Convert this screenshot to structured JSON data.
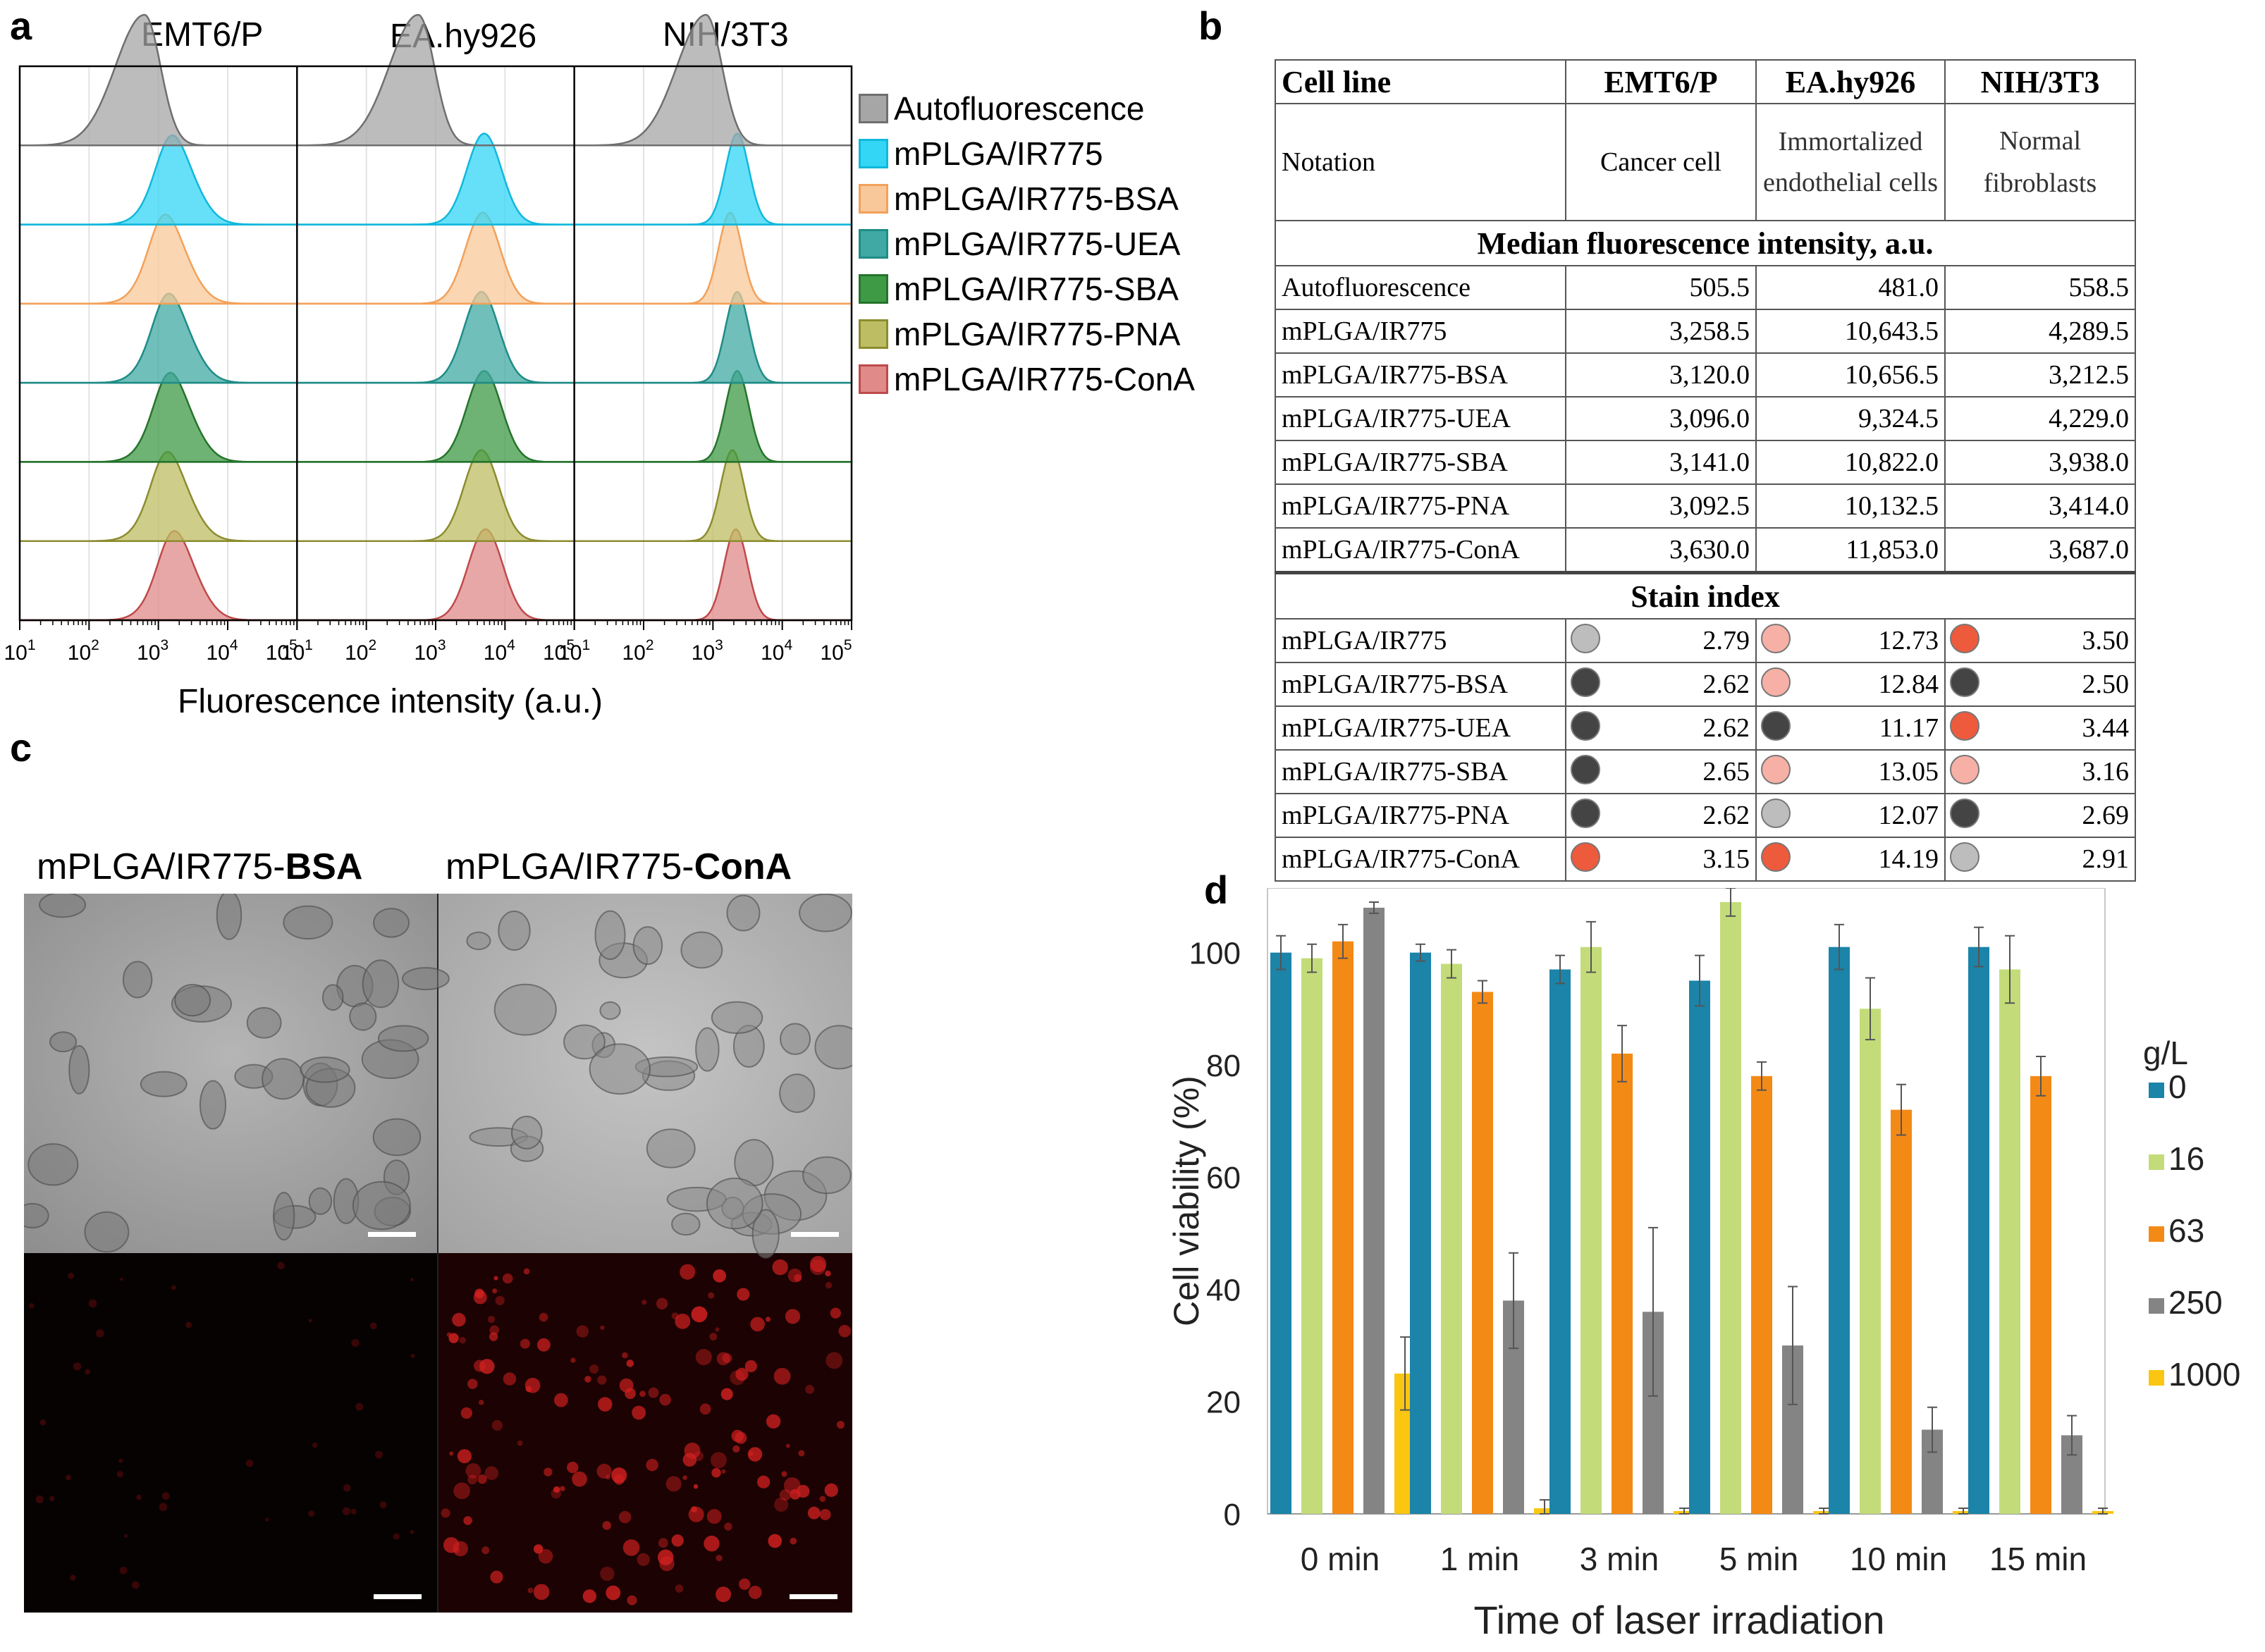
{
  "panel_labels": {
    "a": "a",
    "b": "b",
    "c": "c",
    "d": "d"
  },
  "histogram_panel": {
    "cell_lines": [
      "EMT6/P",
      "EA.hy926",
      "NIH/3T3"
    ],
    "xlabel": "Fluorescence intensity (a.u.)",
    "x_ticks": [
      "1",
      "2",
      "3",
      "4",
      "5"
    ],
    "tick_base": "10",
    "legend": [
      {
        "label": "Autofluorescence",
        "color": "#a6a6a6",
        "stroke": "#6f6f6f"
      },
      {
        "label": "mPLGA/IR775",
        "color": "#33d6f5",
        "stroke": "#10b8dc"
      },
      {
        "label": "mPLGA/IR775-BSA",
        "color": "#f8c89a",
        "stroke": "#f2a15a"
      },
      {
        "label": "mPLGA/IR775-UEA",
        "color": "#40a9a3",
        "stroke": "#1f8c86"
      },
      {
        "label": "mPLGA/IR775-SBA",
        "color": "#3f9a45",
        "stroke": "#25742c"
      },
      {
        "label": "mPLGA/IR775-PNA",
        "color": "#bdbd63",
        "stroke": "#8c8c2f"
      },
      {
        "label": "mPLGA/IR775-ConA",
        "color": "#e08a8a",
        "stroke": "#bf4a4a"
      }
    ]
  },
  "table": {
    "header": [
      "Cell line",
      "EMT6/P",
      "EA.hy926",
      "NIH/3T3"
    ],
    "notation_label": "Notation",
    "notation": [
      "Cancer cell",
      "Immortalized endothelial cells",
      "Normal fibroblasts"
    ],
    "mfi_title": "Median fluorescence intensity, a.u.",
    "mfi_rows": [
      {
        "name": "Autofluorescence",
        "v": [
          "505.5",
          "481.0",
          "558.5"
        ]
      },
      {
        "name": "mPLGA/IR775",
        "v": [
          "3,258.5",
          "10,643.5",
          "4,289.5"
        ]
      },
      {
        "name": "mPLGA/IR775-BSA",
        "v": [
          "3,120.0",
          "10,656.5",
          "3,212.5"
        ]
      },
      {
        "name": "mPLGA/IR775-UEA",
        "v": [
          "3,096.0",
          "9,324.5",
          "4,229.0"
        ]
      },
      {
        "name": "mPLGA/IR775-SBA",
        "v": [
          "3,141.0",
          "10,822.0",
          "3,938.0"
        ]
      },
      {
        "name": "mPLGA/IR775-PNA",
        "v": [
          "3,092.5",
          "10,132.5",
          "3,414.0"
        ]
      },
      {
        "name": "mPLGA/IR775-ConA",
        "v": [
          "3,630.0",
          "11,853.0",
          "3,687.0"
        ]
      }
    ],
    "si_title": "Stain index",
    "si_rows": [
      {
        "name": "mPLGA/IR775",
        "v": [
          "2.79",
          "12.73",
          "3.50"
        ],
        "c": [
          "#bdbdbd",
          "#f7b0a6",
          "#ee5a3c"
        ]
      },
      {
        "name": "mPLGA/IR775-BSA",
        "v": [
          "2.62",
          "12.84",
          "2.50"
        ],
        "c": [
          "#444444",
          "#f7b0a6",
          "#444444"
        ]
      },
      {
        "name": "mPLGA/IR775-UEA",
        "v": [
          "2.62",
          "11.17",
          "3.44"
        ],
        "c": [
          "#444444",
          "#444444",
          "#ee5a3c"
        ]
      },
      {
        "name": "mPLGA/IR775-SBA",
        "v": [
          "2.65",
          "13.05",
          "3.16"
        ],
        "c": [
          "#444444",
          "#f7b0a6",
          "#f7b0a6"
        ]
      },
      {
        "name": "mPLGA/IR775-PNA",
        "v": [
          "2.62",
          "12.07",
          "2.69"
        ],
        "c": [
          "#444444",
          "#bdbdbd",
          "#444444"
        ]
      },
      {
        "name": "mPLGA/IR775-ConA",
        "v": [
          "3.15",
          "14.19",
          "2.91"
        ],
        "c": [
          "#ee5a3c",
          "#ee5a3c",
          "#bdbdbd"
        ]
      }
    ]
  },
  "microscopy": {
    "left_title_prefix": "mPLGA/IR775-",
    "left_title_bold": "BSA",
    "right_title_prefix": "mPLGA/IR775-",
    "right_title_bold": "ConA"
  },
  "chart_data": {
    "type": "bar",
    "xlabel": "Time of laser irradiation",
    "ylabel": "Cell viability (%)",
    "ylim": [
      0,
      110
    ],
    "yticks": [
      0,
      20,
      40,
      60,
      80,
      100
    ],
    "grid": false,
    "legend_title": "g/L",
    "legend_position": "right",
    "categories": [
      "0 min",
      "1 min",
      "3 min",
      "5 min",
      "10 min",
      "15 min"
    ],
    "series": [
      {
        "name": "0",
        "color": "#1b84a8",
        "values": [
          100,
          100,
          97,
          95,
          101,
          101
        ],
        "err": [
          3,
          1.5,
          2.5,
          4.5,
          4,
          3.5
        ]
      },
      {
        "name": "16",
        "color": "#c3dc79",
        "values": [
          99,
          98,
          101,
          109,
          90,
          97
        ],
        "err": [
          2.5,
          2.5,
          4.5,
          2.5,
          5.5,
          6
        ]
      },
      {
        "name": "63",
        "color": "#f48a16",
        "values": [
          102,
          93,
          82,
          78,
          72,
          78
        ],
        "err": [
          3,
          2,
          5,
          2.5,
          4.5,
          3.5
        ]
      },
      {
        "name": "250",
        "color": "#848484",
        "values": [
          108,
          38,
          36,
          30,
          15,
          14
        ],
        "err": [
          1,
          8.5,
          15,
          10.5,
          4,
          3.5
        ]
      },
      {
        "name": "1000",
        "color": "#fbc611",
        "values": [
          25,
          1,
          0.5,
          0.5,
          0.5,
          0.5
        ],
        "err": [
          6.5,
          1.5,
          0.5,
          0.5,
          0.5,
          0.5
        ]
      }
    ]
  }
}
